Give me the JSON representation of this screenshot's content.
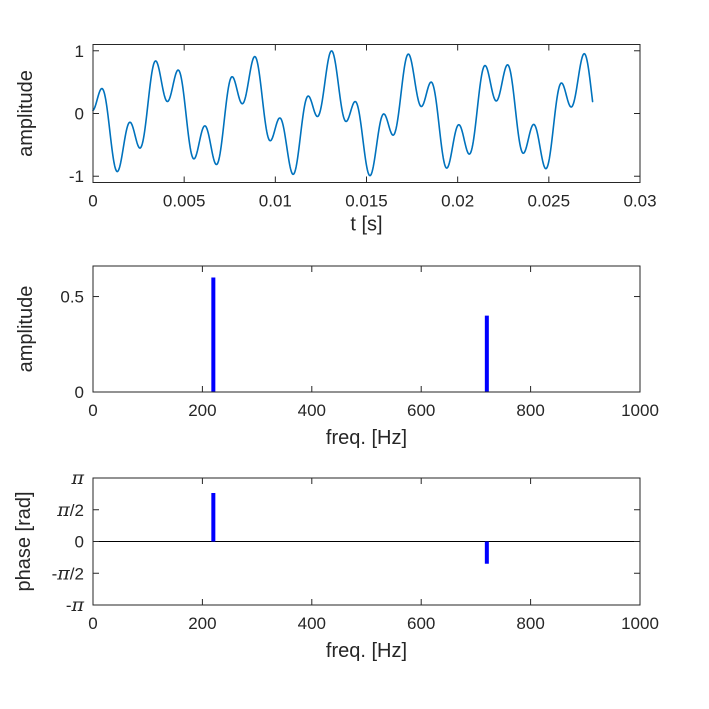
{
  "figure": {
    "background": "#ffffff",
    "axis_color": "#262626",
    "tick_label_color": "#262626"
  },
  "colors": {
    "waveform_line": "#0072BD",
    "stem": "#0000FF",
    "phase_baseline": "#000000"
  },
  "chart_data": [
    {
      "type": "line",
      "id": "time_domain",
      "xlabel": "t [s]",
      "ylabel": "amplitude",
      "xlim": [
        0,
        0.03
      ],
      "ylim": [
        -1.1,
        1.1
      ],
      "xticks": [
        0,
        0.005,
        0.01,
        0.015,
        0.02,
        0.025,
        0.03
      ],
      "xtick_labels": [
        "0",
        "0.005",
        "0.01",
        "0.015",
        "0.02",
        "0.025",
        "0.03"
      ],
      "yticks": [
        -1,
        0,
        1
      ],
      "ytick_labels": [
        "-1",
        "0",
        "1"
      ],
      "grid": false,
      "line_color": "#0072BD",
      "signal": {
        "model": "x(t) = sum of a*sin(2*pi*f*t + phi)",
        "duration_s": 0.0274,
        "components": [
          {
            "amplitude": 0.6,
            "freq_hz": 220,
            "phase_rad": 2.4
          },
          {
            "amplitude": 0.4,
            "freq_hz": 720,
            "phase_rad": -1.1
          }
        ]
      }
    },
    {
      "type": "stem",
      "id": "amplitude_spectrum",
      "xlabel": "freq. [Hz]",
      "ylabel": "amplitude",
      "xlim": [
        0,
        1000
      ],
      "ylim": [
        0,
        0.66
      ],
      "xticks": [
        0,
        200,
        400,
        600,
        800,
        1000
      ],
      "xtick_labels": [
        "0",
        "200",
        "400",
        "600",
        "800",
        "1000"
      ],
      "yticks": [
        0,
        0.5
      ],
      "ytick_labels": [
        "0",
        "0.5"
      ],
      "grid": false,
      "baseline": 0,
      "stem_color": "#0000FF",
      "points": [
        {
          "freq_hz": 220,
          "value": 0.6
        },
        {
          "freq_hz": 720,
          "value": 0.4
        }
      ]
    },
    {
      "type": "stem",
      "id": "phase_spectrum",
      "xlabel": "freq. [Hz]",
      "ylabel": "phase [rad]",
      "xlim": [
        0,
        1000
      ],
      "ylim": [
        -3.141592653589793,
        3.141592653589793
      ],
      "xticks": [
        0,
        200,
        400,
        600,
        800,
        1000
      ],
      "xtick_labels": [
        "0",
        "200",
        "400",
        "600",
        "800",
        "1000"
      ],
      "yticks": [
        3.141592653589793,
        1.5707963267948966,
        0,
        -1.5707963267948966,
        -3.141592653589793
      ],
      "ytick_labels": [
        "π",
        "π/2",
        "0",
        "-π/2",
        "-π"
      ],
      "grid": false,
      "baseline": 0,
      "stem_color": "#0000FF",
      "points": [
        {
          "freq_hz": 220,
          "value": 2.4
        },
        {
          "freq_hz": 720,
          "value": -1.1
        }
      ]
    }
  ]
}
